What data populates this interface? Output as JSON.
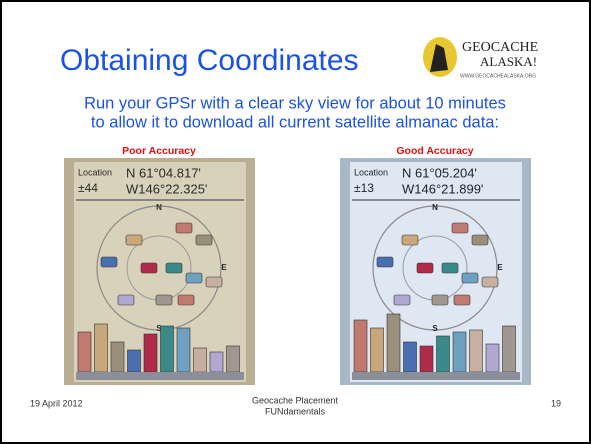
{
  "header": {
    "title": "Obtaining Coordinates",
    "logo": {
      "line1": "GEOCACHE",
      "line2": "ALASKA!",
      "url": "WWW.GEOCACHEALASKA.ORG"
    }
  },
  "body": {
    "lines": [
      "Run your GPSr with a clear sky view for about 10 minutes",
      "to allow it to download all current satellite almanac data:"
    ]
  },
  "panels": [
    {
      "label": "Poor Accuracy",
      "screen": {
        "location_label": "Location",
        "accuracy": "±44",
        "north": "N 61°04.817'",
        "west": "W146°22.325'",
        "compass": [
          "N",
          "E",
          "S"
        ]
      }
    },
    {
      "label": "Good Accuracy",
      "screen": {
        "location_label": "Location",
        "accuracy": "±13",
        "north": "N 61°05.204'",
        "west": "W146°21.899'",
        "compass": [
          "N",
          "E",
          "S"
        ]
      }
    }
  ],
  "footer": {
    "date": "19 April 2012",
    "center": [
      "Geocache Placement",
      "FUNdamentals"
    ],
    "page": "19"
  }
}
